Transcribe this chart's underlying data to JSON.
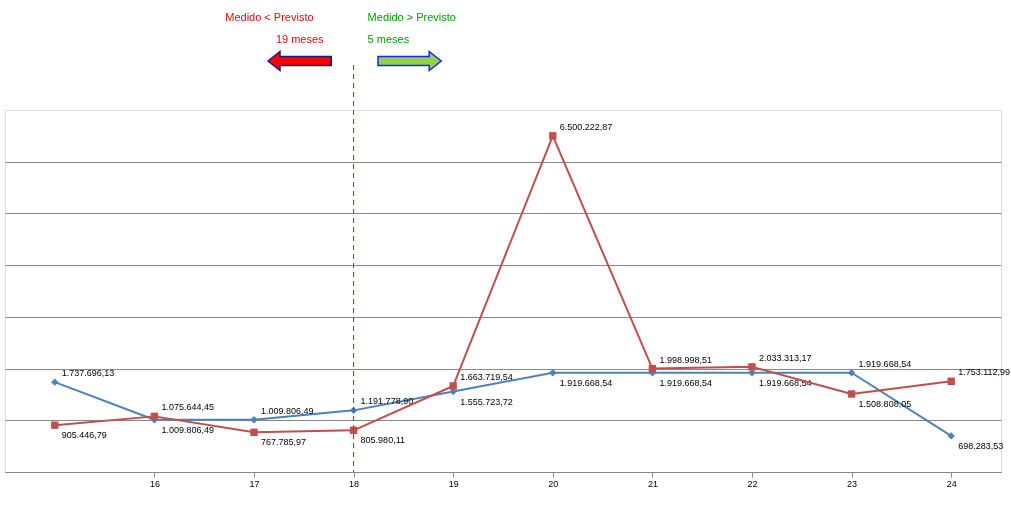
{
  "chart_data": {
    "type": "line",
    "x": [
      15,
      16,
      17,
      18,
      19,
      20,
      21,
      22,
      23,
      24
    ],
    "xlim": [
      14.5,
      24.5
    ],
    "xticks": [
      16,
      17,
      18,
      19,
      20,
      21,
      22,
      23,
      24
    ],
    "ylim": [
      0,
      7000000
    ],
    "yticks": [
      {
        "value": 0,
        "label": null
      },
      {
        "value": 1000000,
        "label": null
      },
      {
        "value": 2000000,
        "label": null
      },
      {
        "value": 3000000,
        "label": null
      },
      {
        "value": 4000000,
        "label": null
      },
      {
        "value": 5000000,
        "label": null
      },
      {
        "value": 6000000,
        "label": null
      }
    ],
    "tick_labels": "x",
    "grid": "y",
    "line_style": "solid",
    "series": [
      {
        "color": "#4f81bd",
        "marker": "diamond",
        "values": [
          1737696.13,
          1009806.49,
          1009806.49,
          1191778.9,
          1555723.72,
          1919668.54,
          1919668.54,
          1919668.54,
          1919668.54,
          698283.53
        ],
        "value_labels": [
          "1.737.696,13",
          "1.009.806,49",
          "1.009.806,49",
          "1.191.778,90",
          "1.555.723,72",
          "1.919.668,54",
          "1.919.668,54",
          "1.919.668,54",
          "1.919.668,54",
          "698.283,53"
        ]
      },
      {
        "color": "#c0504d",
        "marker": "square",
        "values": [
          905446.79,
          1075644.45,
          767785.97,
          805980.11,
          1663719.54,
          6500222.87,
          1998998.51,
          2033313.17,
          1508808.05,
          1753112.99
        ],
        "value_labels": [
          "905.446,79",
          "1.075.644,45",
          "767.785,97",
          "805.980,11",
          "1.663.719,54",
          "6.500.222,87",
          "1.998.998,51",
          "2.033.313,17",
          "1.508.808,05",
          "1.753.112,99"
        ]
      }
    ],
    "ref_lines": [
      {
        "axis": "x",
        "value": 18,
        "color": "#ff0000",
        "line_style": "dashed"
      }
    ],
    "annotations": [
      "Medido < Previsto",
      "19 meses",
      "Medido > Previsto",
      "5 meses"
    ]
  }
}
